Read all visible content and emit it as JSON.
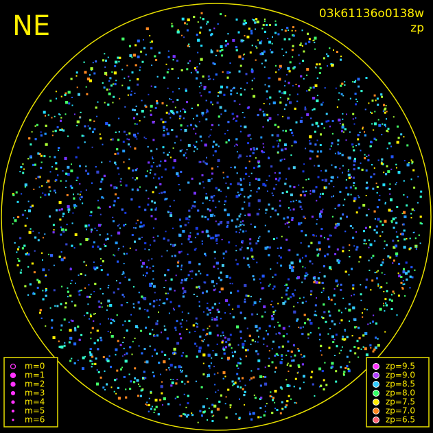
{
  "header": {
    "direction": "NE",
    "frame_id": "03k61136o0138w",
    "metric": "zp"
  },
  "magnitude_legend": [
    "m=0",
    "m=1",
    "m=2",
    "m=3",
    "m=4",
    "m=5",
    "m=6"
  ],
  "zp_legend": [
    {
      "label": "zp=9.5",
      "color": "#ff33ff"
    },
    {
      "label": "zp=9.0",
      "color": "#b040ff"
    },
    {
      "label": "zp=8.5",
      "color": "#33ccff"
    },
    {
      "label": "zp=8.0",
      "color": "#33ff66"
    },
    {
      "label": "zp=7.5",
      "color": "#ffee00"
    },
    {
      "label": "zp=7.0",
      "color": "#ff8820"
    },
    {
      "label": "zp=6.5",
      "color": "#ff6677"
    }
  ]
}
